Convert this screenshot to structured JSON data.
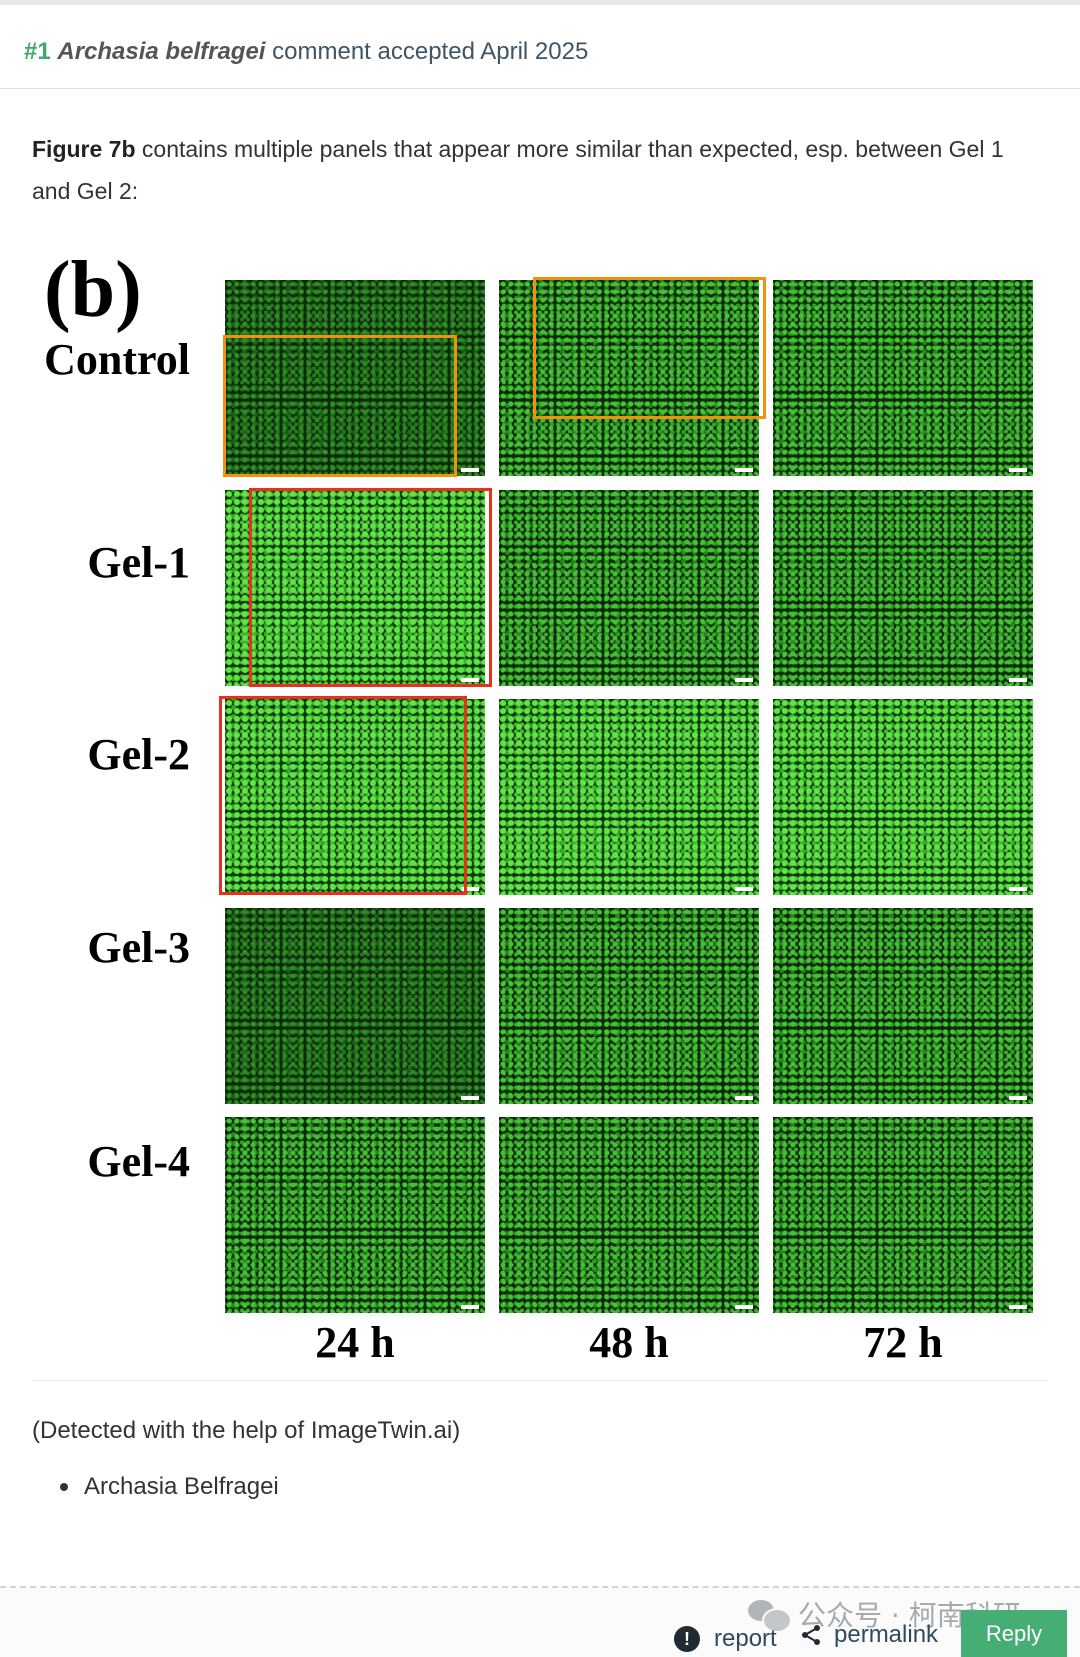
{
  "header": {
    "pub_number": "#1",
    "species_name": "Archasia belfragei",
    "status_text": "comment accepted April 2025"
  },
  "comment": {
    "figure_ref": "Figure 7b",
    "body_text": " contains multiple panels that appear more similar than expected, esp. between Gel 1 and Gel 2:",
    "detected_note": "(Detected with the help of ImageTwin.ai)",
    "authors": [
      "Archasia Belfragei"
    ]
  },
  "figure": {
    "panel_letter": "(b)",
    "row_labels": [
      "Control",
      "Gel-1",
      "Gel-2",
      "Gel-3",
      "Gel-4"
    ],
    "column_labels": [
      "24 h",
      "48 h",
      "72 h"
    ],
    "highlight_colors": {
      "match_pair_1": "#f2920c",
      "match_pair_2": "#e8301c"
    }
  },
  "footer": {
    "report_label": "report",
    "permalink_label": "permalink",
    "reply_label": "Reply",
    "watermark_text": "公众号 · 柯南科研"
  },
  "colors": {
    "accent_green": "#46ad74",
    "number_green": "#3fa86b",
    "link_color": "#2f4a5c"
  }
}
